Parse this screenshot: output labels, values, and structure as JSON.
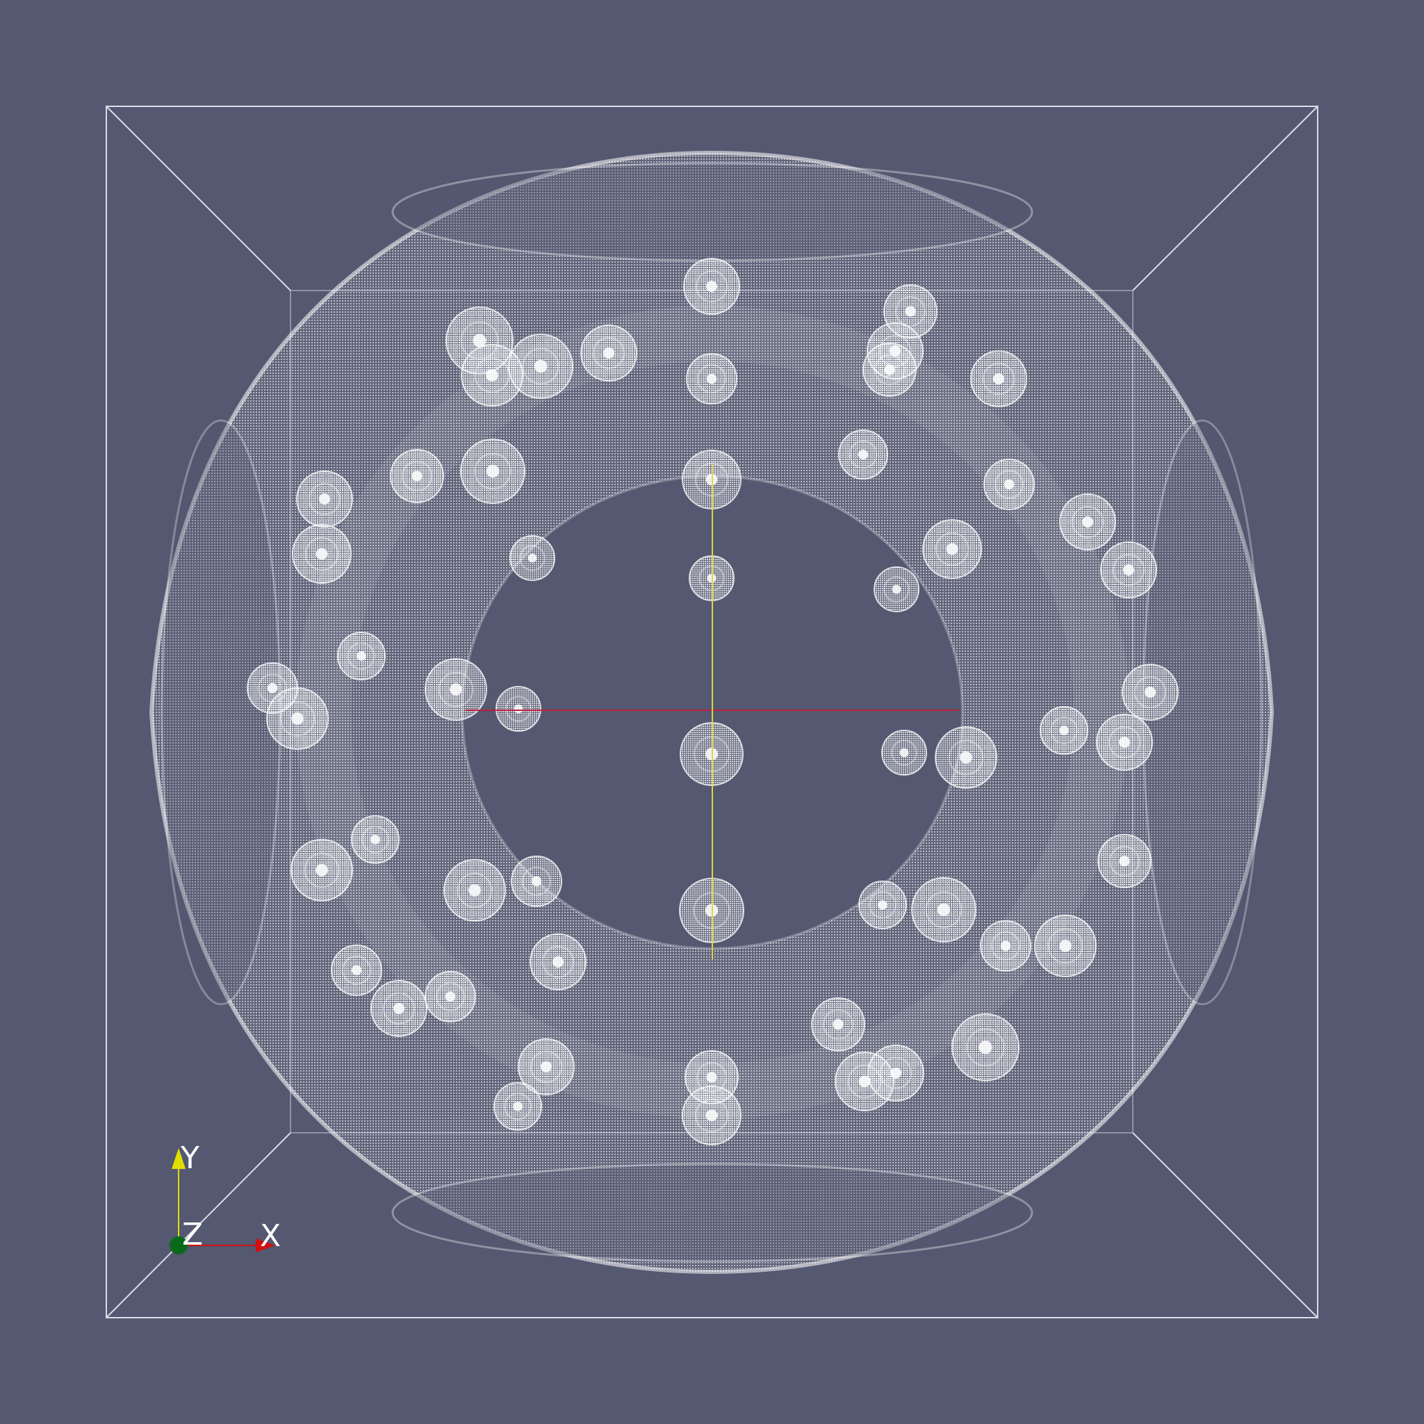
{
  "viewport": {
    "background_color": "#545870",
    "mesh_color": "#ffffff",
    "representation": "points"
  },
  "orientation_axes": {
    "x_label": "X",
    "y_label": "Y",
    "z_label": "Z",
    "x_color": "#d01010",
    "y_color": "#e0e000",
    "z_color": "#0a6a1a"
  }
}
